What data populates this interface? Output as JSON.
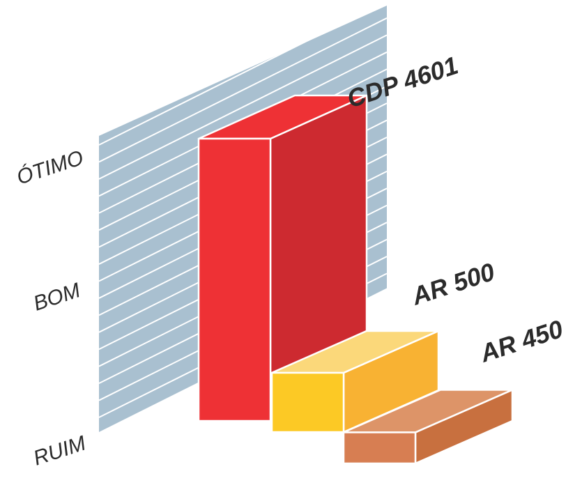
{
  "chart_data": {
    "type": "bar",
    "style": "3d",
    "title": "",
    "xlabel": "",
    "ylabel": "",
    "y_levels": [
      "RUIM",
      "BOM",
      "ÓTIMO"
    ],
    "ylim": [
      0,
      10
    ],
    "grid": true,
    "categories": [
      "CDP 4601",
      "AR 500",
      "AR 450"
    ],
    "values": [
      10,
      2.1,
      1.1
    ],
    "colors": {
      "wall": "#a9c0d0",
      "grid": "#ffffff",
      "bars": [
        {
          "front": "#ee3135",
          "side": "#cd2a30",
          "top": "#ee3135"
        },
        {
          "front": "#fcc925",
          "side": "#f8b233",
          "top": "#fbd87a"
        },
        {
          "front": "#d77e52",
          "side": "#c8703f",
          "top": "#dd9468"
        }
      ]
    }
  }
}
